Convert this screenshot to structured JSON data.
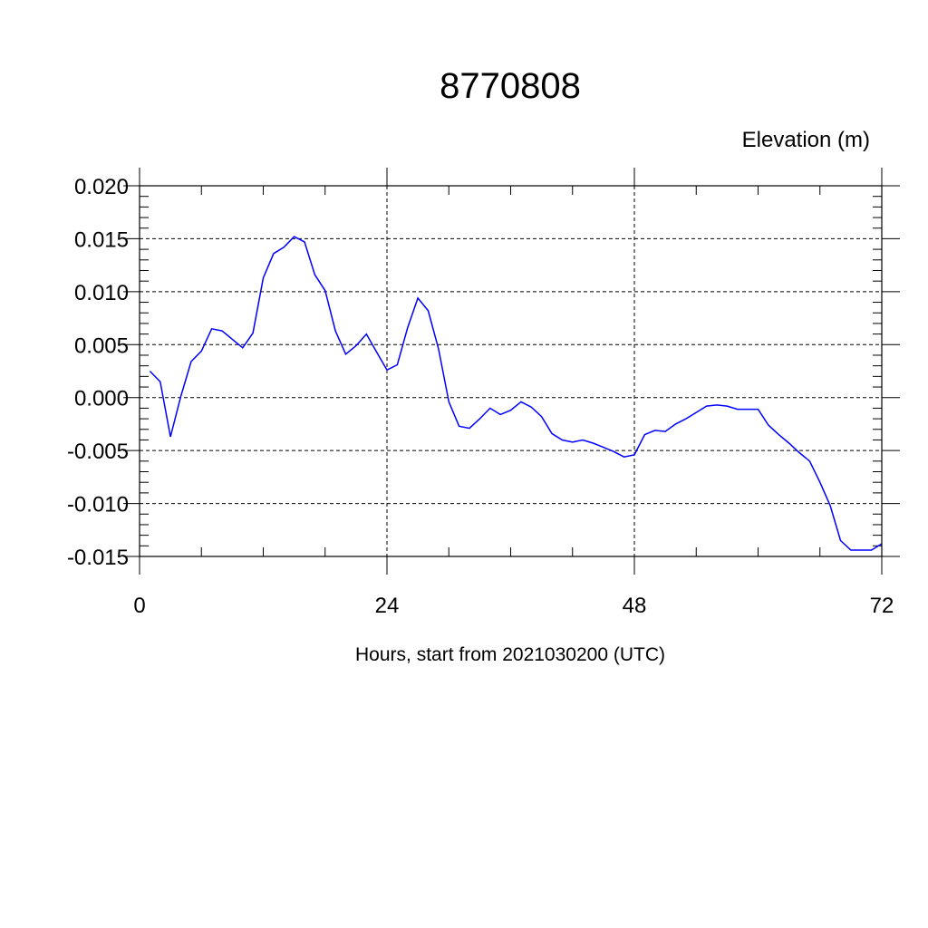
{
  "chart_data": {
    "type": "line",
    "title": "8770808",
    "ylabel": "Elevation (m)",
    "xlabel": "Hours, start from 2021030200 (UTC)",
    "xlim": [
      0,
      72
    ],
    "ylim": [
      -0.015,
      0.02
    ],
    "x_ticks": [
      0,
      24,
      48,
      72
    ],
    "x_tick_labels": [
      "0",
      "24",
      "48",
      "72"
    ],
    "y_ticks": [
      -0.015,
      -0.01,
      -0.005,
      0.0,
      0.005,
      0.01,
      0.015,
      0.02
    ],
    "y_tick_labels": [
      "-0.015",
      "-0.010",
      "-0.005",
      "0.000",
      "0.005",
      "0.010",
      "0.015",
      "0.020"
    ],
    "grid": true,
    "line_color": "#0000ff",
    "series": [
      {
        "x": [
          1,
          2,
          3,
          4,
          5,
          6,
          7,
          8,
          9,
          10,
          11,
          12,
          13,
          14,
          15,
          16,
          17,
          18,
          19,
          20,
          21,
          22,
          23,
          24,
          25,
          26,
          27,
          28,
          29,
          30,
          31,
          32,
          33,
          34,
          35,
          36,
          37,
          38,
          39,
          40,
          41,
          42,
          43,
          44,
          45,
          46,
          47,
          48,
          49,
          50,
          51,
          52,
          53,
          54,
          55,
          56,
          57,
          58,
          59,
          60,
          61,
          62,
          63,
          64,
          65,
          66,
          67,
          68,
          69,
          70,
          71,
          72
        ],
        "values": [
          0.0025,
          0.0015,
          -0.0037,
          0.0001,
          0.0034,
          0.0044,
          0.0065,
          0.0063,
          0.0055,
          0.0047,
          0.0061,
          0.0113,
          0.0136,
          0.0142,
          0.0152,
          0.0147,
          0.0116,
          0.0101,
          0.0063,
          0.0041,
          0.0049,
          0.006,
          0.0043,
          0.0026,
          0.0031,
          0.0066,
          0.0094,
          0.0082,
          0.0046,
          -0.0004,
          -0.0027,
          -0.0029,
          -0.002,
          -0.001,
          -0.0016,
          -0.0012,
          -0.0004,
          -0.0009,
          -0.0018,
          -0.0034,
          -0.004,
          -0.0042,
          -0.004,
          -0.0043,
          -0.0047,
          -0.0051,
          -0.0056,
          -0.0054,
          -0.0035,
          -0.0031,
          -0.0032,
          -0.0025,
          -0.002,
          -0.0014,
          -0.0008,
          -0.0007,
          -0.0008,
          -0.0011,
          -0.0011,
          -0.0011,
          -0.0026,
          -0.0035,
          -0.0043,
          -0.0052,
          -0.006,
          -0.008,
          -0.0102,
          -0.0135,
          -0.0144,
          -0.0144,
          -0.0144,
          -0.0138
        ]
      }
    ]
  }
}
